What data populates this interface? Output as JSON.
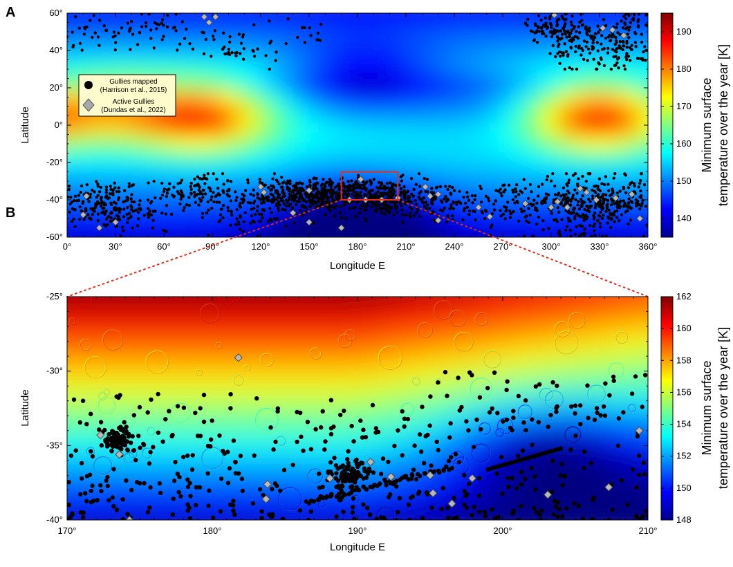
{
  "chart_data": [
    {
      "panel": "A",
      "type": "scatter",
      "background": "heatmap",
      "xlabel": "Longitude E",
      "ylabel": "Latitude",
      "xlim": [
        0,
        360
      ],
      "ylim": [
        -60,
        60
      ],
      "xticks": [
        "0°",
        "30°",
        "60°",
        "90°",
        "120°",
        "150°",
        "180°",
        "210°",
        "240°",
        "270°",
        "300°",
        "330°",
        "360°"
      ],
      "yticks": [
        "60°",
        "40°",
        "20°",
        "0°",
        "-20°",
        "-40°",
        "-60°"
      ],
      "colorbar": {
        "label_line1": "Minimum surface",
        "label_line2": "temperature  over the year [K]",
        "range": [
          135,
          195
        ],
        "ticks": [
          "190",
          "180",
          "170",
          "160",
          "150",
          "140"
        ]
      },
      "legend": {
        "position": "upper-left",
        "entries": [
          {
            "marker": "circle",
            "color": "#000000",
            "line1": "Gullies mapped",
            "line2": "(Harrison et al., 2015)"
          },
          {
            "marker": "diamond",
            "color": "#a8a8a8",
            "line1": "Active Gullies",
            "line2": "(Dundas et al., 2022)"
          }
        ]
      },
      "highlight_box": {
        "lon": [
          170,
          205
        ],
        "lat": [
          -40,
          -25
        ],
        "color": "#e8291c"
      },
      "hot_regions": [
        {
          "lon": 85,
          "lat": 5,
          "temp": 186
        },
        {
          "lon": 330,
          "lat": 5,
          "temp": 188
        },
        {
          "lon": 30,
          "lat": 10,
          "temp": 176
        }
      ],
      "cold_regions": [
        {
          "lon": 185,
          "lat": 25,
          "temp": 142
        },
        {
          "lon": 250,
          "lat": 15,
          "temp": 150
        },
        {
          "lon": 180,
          "lat": -50,
          "temp": 138
        }
      ]
    },
    {
      "panel": "B",
      "type": "scatter",
      "background": "heatmap",
      "xlabel": "Longitude E",
      "ylabel": "Latitude",
      "xlim": [
        170,
        210
      ],
      "ylim": [
        -40,
        -25
      ],
      "xticks": [
        "170°",
        "180°",
        "190°",
        "200°",
        "210°"
      ],
      "yticks": [
        "-25°",
        "-30°",
        "-35°",
        "-40°"
      ],
      "colorbar": {
        "label_line1": "Minimum surface",
        "label_line2": "temperature  over the year [K]",
        "range": [
          148,
          162
        ],
        "ticks": [
          "162",
          "160",
          "158",
          "156",
          "154",
          "152",
          "150",
          "148"
        ]
      },
      "active_gullies": [
        {
          "lon": 181.8,
          "lat": -29.1
        },
        {
          "lon": 172.3,
          "lat": -34.3
        },
        {
          "lon": 173.6,
          "lat": -35.6
        },
        {
          "lon": 183.8,
          "lat": -37.6
        },
        {
          "lon": 183.7,
          "lat": -38.6
        },
        {
          "lon": 188.1,
          "lat": -37.2
        },
        {
          "lon": 190.9,
          "lat": -36.1
        },
        {
          "lon": 192.3,
          "lat": -37.1
        },
        {
          "lon": 195.0,
          "lat": -37.0
        },
        {
          "lon": 195.2,
          "lat": -38.2
        },
        {
          "lon": 196.5,
          "lat": -38.9
        },
        {
          "lon": 197.9,
          "lat": -37.2
        },
        {
          "lon": 203.1,
          "lat": -38.3
        },
        {
          "lon": 209.4,
          "lat": -34.0
        },
        {
          "lon": 174.3,
          "lat": -40.0
        },
        {
          "lon": 207.3,
          "lat": -37.8
        }
      ],
      "dense_clusters": [
        {
          "lon": 173.5,
          "lat": -34.6,
          "spread": 0.6
        },
        {
          "lon": 189.5,
          "lat": -37.0,
          "spread": 0.7
        }
      ],
      "linear_trend": [
        {
          "lon": 186.5,
          "lat": -38.8
        },
        {
          "lon": 196.5,
          "lat": -36.5
        }
      ]
    }
  ]
}
